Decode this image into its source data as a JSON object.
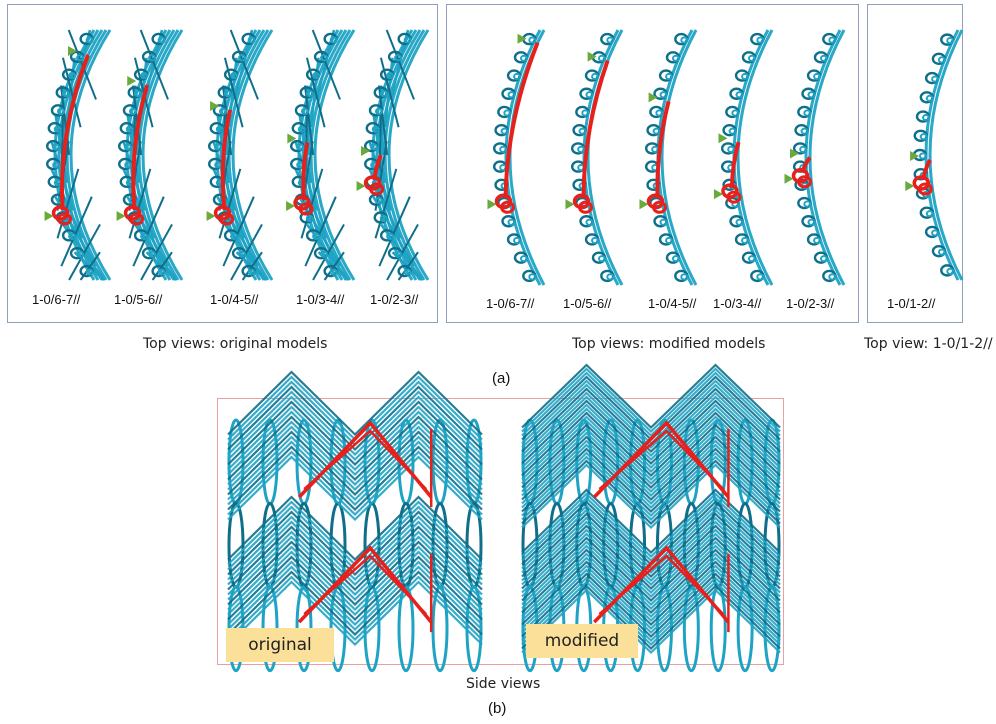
{
  "part_a": {
    "label": "(a)",
    "original_group": {
      "caption": "Top views: original models",
      "models": [
        "1-0/6-7//",
        "1-0/5-6//",
        "1-0/4-5//",
        "1-0/3-4//",
        "1-0/2-3//"
      ]
    },
    "modified_group": {
      "caption": "Top views: modified models",
      "models": [
        "1-0/6-7//",
        "1-0/5-6//",
        "1-0/4-5//",
        "1-0/3-4//",
        "1-0/2-3//"
      ]
    },
    "single_group": {
      "caption": "Top view: 1-0/1-2//",
      "models": [
        "1-0/1-2//"
      ]
    }
  },
  "part_b": {
    "label": "(b)",
    "caption": "Side views",
    "tag_original": "original",
    "tag_modified": "modified"
  },
  "colors": {
    "yarn": "#1fa3c4",
    "yarn_dark": "#0f6f8a",
    "highlight": "#e8201c",
    "marker": "#6aaa3c",
    "panel_border_a": "#8f9fc0",
    "panel_border_b": "#e8a0a0",
    "tag_fill": "#fbe09a"
  }
}
